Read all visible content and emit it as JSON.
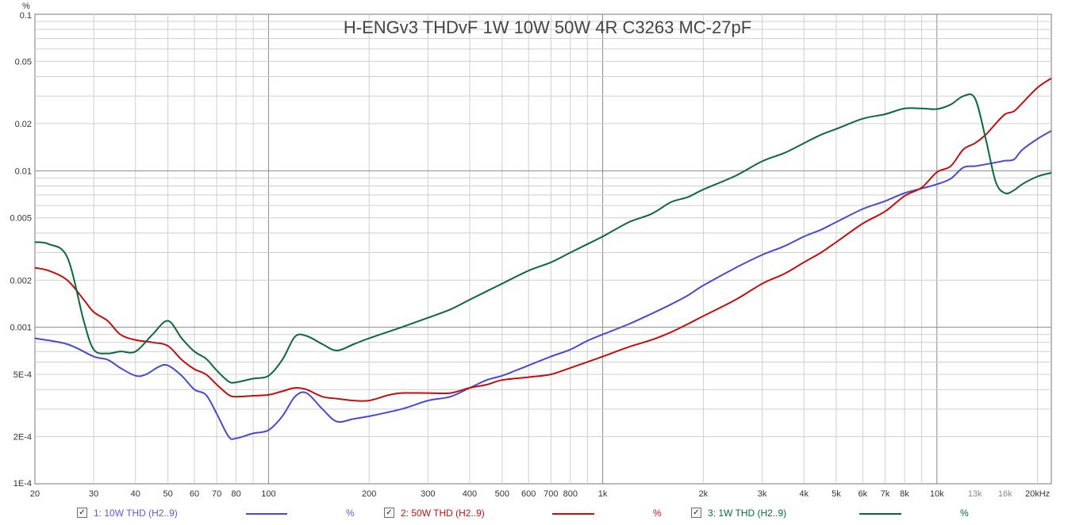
{
  "chart_data": {
    "type": "line",
    "title": "H-ENGv3 THDvF 1W 10W 50W 4R C3263 MC-27pF",
    "ylabel": "%",
    "xlabel": "",
    "x_scale": "log",
    "y_scale": "log",
    "xlim": [
      20,
      22000
    ],
    "ylim": [
      0.0001,
      0.1
    ],
    "x_tick_labels": [
      {
        "v": 20,
        "t": "20"
      },
      {
        "v": 30,
        "t": "30"
      },
      {
        "v": 40,
        "t": "40"
      },
      {
        "v": 50,
        "t": "50"
      },
      {
        "v": 60,
        "t": "60"
      },
      {
        "v": 70,
        "t": "70"
      },
      {
        "v": 80,
        "t": "80"
      },
      {
        "v": 100,
        "t": "100"
      },
      {
        "v": 200,
        "t": "200"
      },
      {
        "v": 300,
        "t": "300"
      },
      {
        "v": 400,
        "t": "400"
      },
      {
        "v": 500,
        "t": "500"
      },
      {
        "v": 600,
        "t": "600"
      },
      {
        "v": 700,
        "t": "700"
      },
      {
        "v": 800,
        "t": "800"
      },
      {
        "v": 1000,
        "t": "1k"
      },
      {
        "v": 2000,
        "t": "2k"
      },
      {
        "v": 3000,
        "t": "3k"
      },
      {
        "v": 4000,
        "t": "4k"
      },
      {
        "v": 5000,
        "t": "5k"
      },
      {
        "v": 6000,
        "t": "6k"
      },
      {
        "v": 7000,
        "t": "7k"
      },
      {
        "v": 8000,
        "t": "8k"
      },
      {
        "v": 10000,
        "t": "10k"
      },
      {
        "v": 13000,
        "t": "13k",
        "muted": true
      },
      {
        "v": 16000,
        "t": "16k",
        "muted": true
      },
      {
        "v": 20000,
        "t": "20kHz"
      }
    ],
    "y_tick_labels": [
      {
        "v": 0.1,
        "t": "0.1"
      },
      {
        "v": 0.05,
        "t": "0.05"
      },
      {
        "v": 0.02,
        "t": "0.02"
      },
      {
        "v": 0.01,
        "t": "0.01"
      },
      {
        "v": 0.005,
        "t": "0.005"
      },
      {
        "v": 0.002,
        "t": "0.002"
      },
      {
        "v": 0.001,
        "t": "0.001"
      },
      {
        "v": 0.0005,
        "t": "5E-4"
      },
      {
        "v": 0.0002,
        "t": "2E-4"
      },
      {
        "v": 0.0001,
        "t": "1E-4"
      }
    ],
    "grid": true,
    "legend_position": "bottom",
    "series": [
      {
        "name": "1: 10W THD (H2..9)",
        "unit": "%",
        "color": "#4a4ad0",
        "points": [
          [
            20,
            0.00085
          ],
          [
            25,
            0.00078
          ],
          [
            30,
            0.00065
          ],
          [
            33,
            0.00062
          ],
          [
            36,
            0.00055
          ],
          [
            40,
            0.00049
          ],
          [
            43,
            0.0005
          ],
          [
            47,
            0.00056
          ],
          [
            50,
            0.00057
          ],
          [
            55,
            0.00049
          ],
          [
            60,
            0.0004
          ],
          [
            65,
            0.00037
          ],
          [
            70,
            0.00028
          ],
          [
            76,
            0.0002
          ],
          [
            80,
            0.000195
          ],
          [
            90,
            0.00021
          ],
          [
            100,
            0.00022
          ],
          [
            110,
            0.00027
          ],
          [
            120,
            0.00036
          ],
          [
            130,
            0.00038
          ],
          [
            145,
            0.0003
          ],
          [
            160,
            0.00025
          ],
          [
            180,
            0.00026
          ],
          [
            200,
            0.00027
          ],
          [
            250,
            0.0003
          ],
          [
            300,
            0.00034
          ],
          [
            350,
            0.00036
          ],
          [
            400,
            0.00041
          ],
          [
            450,
            0.00046
          ],
          [
            500,
            0.00049
          ],
          [
            550,
            0.00053
          ],
          [
            600,
            0.00057
          ],
          [
            700,
            0.00065
          ],
          [
            800,
            0.00072
          ],
          [
            900,
            0.00082
          ],
          [
            1000,
            0.0009
          ],
          [
            1200,
            0.00105
          ],
          [
            1400,
            0.00122
          ],
          [
            1600,
            0.0014
          ],
          [
            1800,
            0.0016
          ],
          [
            2000,
            0.00185
          ],
          [
            2500,
            0.0024
          ],
          [
            3000,
            0.0029
          ],
          [
            3500,
            0.0033
          ],
          [
            4000,
            0.0038
          ],
          [
            4500,
            0.0042
          ],
          [
            5000,
            0.0047
          ],
          [
            6000,
            0.0057
          ],
          [
            7000,
            0.0064
          ],
          [
            8000,
            0.0072
          ],
          [
            9000,
            0.0077
          ],
          [
            10000,
            0.0082
          ],
          [
            11000,
            0.0089
          ],
          [
            12000,
            0.0105
          ],
          [
            13000,
            0.0107
          ],
          [
            14000,
            0.011
          ],
          [
            15000,
            0.0113
          ],
          [
            16000,
            0.0116
          ],
          [
            17000,
            0.0118
          ],
          [
            18000,
            0.0136
          ],
          [
            20000,
            0.016
          ],
          [
            22000,
            0.018
          ]
        ]
      },
      {
        "name": "2: 50W THD (H2..9)",
        "unit": "%",
        "color": "#c01010",
        "points": [
          [
            20,
            0.0024
          ],
          [
            22,
            0.0023
          ],
          [
            25,
            0.002
          ],
          [
            28,
            0.0015
          ],
          [
            30,
            0.00125
          ],
          [
            33,
            0.0011
          ],
          [
            36,
            0.0009
          ],
          [
            40,
            0.00083
          ],
          [
            45,
            0.0008
          ],
          [
            50,
            0.00076
          ],
          [
            55,
            0.00062
          ],
          [
            60,
            0.00054
          ],
          [
            65,
            0.0005
          ],
          [
            70,
            0.00043
          ],
          [
            76,
            0.00037
          ],
          [
            80,
            0.00036
          ],
          [
            90,
            0.000365
          ],
          [
            100,
            0.00037
          ],
          [
            110,
            0.00039
          ],
          [
            120,
            0.00041
          ],
          [
            130,
            0.0004
          ],
          [
            145,
            0.00036
          ],
          [
            160,
            0.00035
          ],
          [
            180,
            0.00034
          ],
          [
            200,
            0.00034
          ],
          [
            230,
            0.00037
          ],
          [
            250,
            0.00038
          ],
          [
            300,
            0.00038
          ],
          [
            350,
            0.00038
          ],
          [
            400,
            0.00041
          ],
          [
            450,
            0.00043
          ],
          [
            500,
            0.00046
          ],
          [
            600,
            0.00048
          ],
          [
            700,
            0.0005
          ],
          [
            800,
            0.00055
          ],
          [
            900,
            0.0006
          ],
          [
            1000,
            0.00065
          ],
          [
            1200,
            0.00075
          ],
          [
            1400,
            0.00083
          ],
          [
            1600,
            0.00093
          ],
          [
            1800,
            0.00105
          ],
          [
            2000,
            0.00118
          ],
          [
            2500,
            0.0015
          ],
          [
            3000,
            0.0019
          ],
          [
            3500,
            0.0022
          ],
          [
            4000,
            0.0026
          ],
          [
            4500,
            0.003
          ],
          [
            5000,
            0.0035
          ],
          [
            6000,
            0.0046
          ],
          [
            7000,
            0.0055
          ],
          [
            8000,
            0.0069
          ],
          [
            9000,
            0.0078
          ],
          [
            10000,
            0.0098
          ],
          [
            11000,
            0.0107
          ],
          [
            12000,
            0.0137
          ],
          [
            13000,
            0.015
          ],
          [
            14000,
            0.017
          ],
          [
            15000,
            0.02
          ],
          [
            16000,
            0.023
          ],
          [
            17000,
            0.024
          ],
          [
            18000,
            0.027
          ],
          [
            20000,
            0.034
          ],
          [
            22000,
            0.039
          ]
        ]
      },
      {
        "name": "3: 1W THD (H2..9)",
        "unit": "%",
        "color": "#0a6a3a",
        "points": [
          [
            20,
            0.0035
          ],
          [
            22,
            0.0034
          ],
          [
            25,
            0.0028
          ],
          [
            28,
            0.0011
          ],
          [
            30,
            0.00072
          ],
          [
            33,
            0.00068
          ],
          [
            36,
            0.0007
          ],
          [
            40,
            0.0007
          ],
          [
            45,
            0.0009
          ],
          [
            50,
            0.0011
          ],
          [
            55,
            0.00085
          ],
          [
            60,
            0.0007
          ],
          [
            65,
            0.00063
          ],
          [
            70,
            0.00053
          ],
          [
            76,
            0.00045
          ],
          [
            80,
            0.000445
          ],
          [
            90,
            0.00047
          ],
          [
            100,
            0.00049
          ],
          [
            110,
            0.00062
          ],
          [
            120,
            0.00087
          ],
          [
            130,
            0.00088
          ],
          [
            145,
            0.00078
          ],
          [
            160,
            0.00071
          ],
          [
            180,
            0.00078
          ],
          [
            200,
            0.00085
          ],
          [
            250,
            0.001
          ],
          [
            300,
            0.00115
          ],
          [
            350,
            0.0013
          ],
          [
            400,
            0.0015
          ],
          [
            450,
            0.0017
          ],
          [
            500,
            0.0019
          ],
          [
            600,
            0.0023
          ],
          [
            700,
            0.0026
          ],
          [
            800,
            0.003
          ],
          [
            900,
            0.0034
          ],
          [
            1000,
            0.0038
          ],
          [
            1200,
            0.0047
          ],
          [
            1400,
            0.0053
          ],
          [
            1600,
            0.0063
          ],
          [
            1800,
            0.0068
          ],
          [
            2000,
            0.0076
          ],
          [
            2500,
            0.0093
          ],
          [
            3000,
            0.0115
          ],
          [
            3500,
            0.013
          ],
          [
            4000,
            0.015
          ],
          [
            4500,
            0.017
          ],
          [
            5000,
            0.0185
          ],
          [
            6000,
            0.0215
          ],
          [
            7000,
            0.023
          ],
          [
            8000,
            0.025
          ],
          [
            9000,
            0.025
          ],
          [
            10000,
            0.0248
          ],
          [
            11000,
            0.0265
          ],
          [
            12000,
            0.03
          ],
          [
            13000,
            0.029
          ],
          [
            14000,
            0.016
          ],
          [
            15000,
            0.0085
          ],
          [
            16000,
            0.0072
          ],
          [
            17000,
            0.0075
          ],
          [
            18000,
            0.0082
          ],
          [
            20000,
            0.0092
          ],
          [
            22000,
            0.0097
          ]
        ]
      }
    ]
  },
  "legend": {
    "items": [
      {
        "label": "1: 10W THD (H2..9)",
        "unit": "%",
        "check": "✓"
      },
      {
        "label": "2: 50W THD (H2..9)",
        "unit": "%",
        "check": "✓"
      },
      {
        "label": "3: 1W THD (H2..9)",
        "unit": "%",
        "check": "✓"
      }
    ]
  }
}
